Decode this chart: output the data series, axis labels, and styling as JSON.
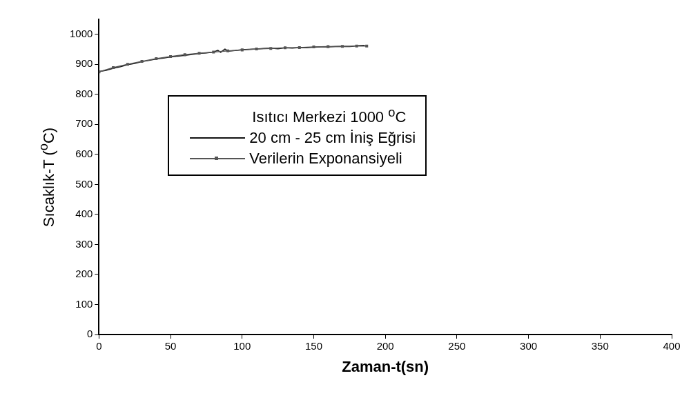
{
  "chart_data": {
    "type": "line",
    "xlabel": "Zaman-t(sn)",
    "ylabel": "Sıcaklık-T ($^{o}$C)",
    "legend_title": "Isıtıcı Merkezi 1000 $^{o}$C",
    "xlim": [
      0,
      400
    ],
    "xticks": [
      0,
      50,
      100,
      150,
      200,
      250,
      300,
      350,
      400
    ],
    "ylim": [
      0,
      1050
    ],
    "yticks": [
      0,
      100,
      200,
      300,
      400,
      500,
      600,
      700,
      800,
      900,
      1000
    ],
    "grid": false,
    "legend": "top left",
    "series": [
      {
        "name": "20 cm - 25 cm İniş Eğrisi",
        "color": "#111111",
        "marker": "none",
        "x": [
          0,
          5,
          10,
          15,
          20,
          25,
          30,
          35,
          40,
          45,
          50,
          55,
          60,
          65,
          70,
          75,
          80,
          83,
          85,
          88,
          90,
          95,
          100,
          105,
          110,
          115,
          120,
          125,
          130,
          135,
          140,
          145,
          150,
          155,
          160,
          165,
          170,
          175,
          180,
          185,
          187
        ],
        "values": [
          876,
          880,
          887,
          892,
          899,
          903,
          909,
          913,
          918,
          921,
          925,
          927,
          930,
          933,
          936,
          938,
          941,
          947,
          940,
          951,
          944,
          946,
          949,
          950,
          951,
          953,
          954,
          952,
          955,
          954,
          956,
          955,
          957,
          958,
          958,
          959,
          960,
          959,
          962,
          963,
          961
        ]
      },
      {
        "name": "Verilerin Exponansiyeli",
        "color": "#555555",
        "marker": "square",
        "x": [
          0,
          10,
          20,
          30,
          40,
          50,
          60,
          70,
          80,
          90,
          100,
          110,
          120,
          130,
          140,
          150,
          160,
          170,
          180,
          187
        ],
        "values": [
          875,
          889,
          900,
          910,
          919,
          926,
          932,
          937,
          941,
          945,
          948,
          951,
          953,
          955,
          956,
          958,
          959,
          960,
          961,
          961
        ]
      }
    ]
  }
}
